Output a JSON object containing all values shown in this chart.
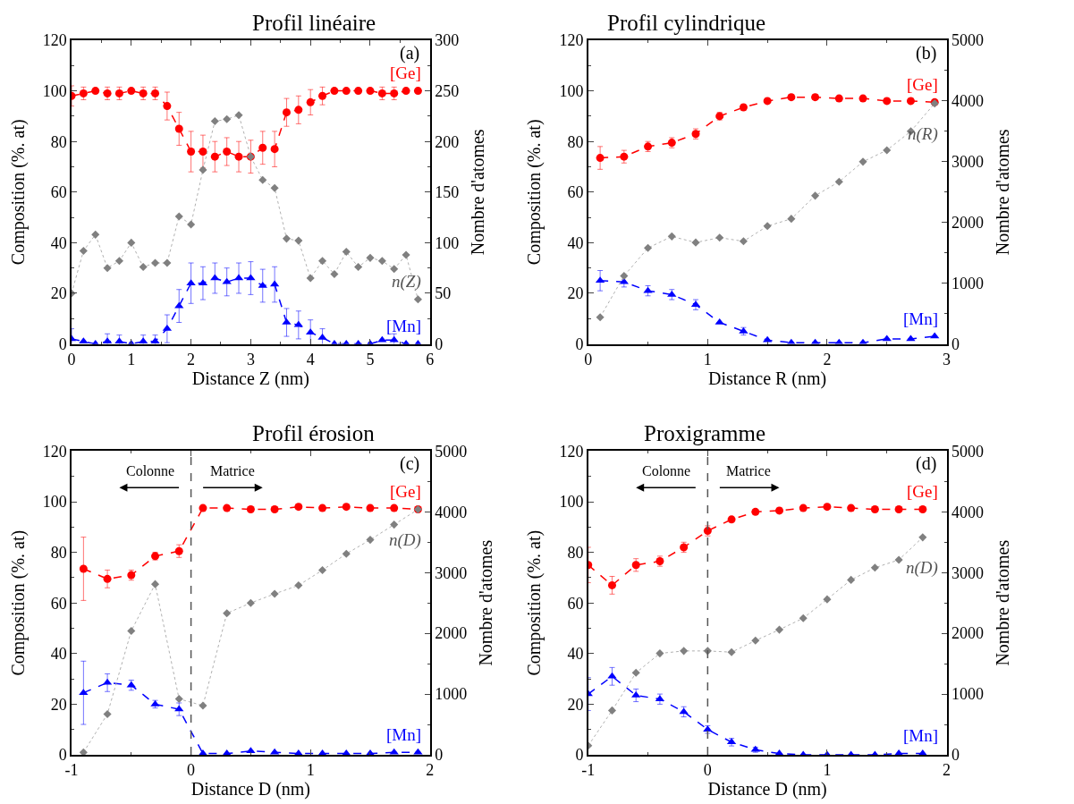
{
  "chart_data": [
    {
      "type": "line",
      "title": "Profil linéaire",
      "xlabel": "Distance Z (nm)",
      "ylabel": "Composition (%. at)",
      "y2label": "Nombre d'atomes",
      "xlim": [
        0,
        6
      ],
      "xticks": [
        0,
        1,
        2,
        3,
        4,
        5,
        6
      ],
      "ylim": [
        0,
        120
      ],
      "yticks": [
        0,
        20,
        40,
        60,
        80,
        100,
        120
      ],
      "y2lim": [
        0,
        300
      ],
      "y2ticks": [
        0,
        50,
        100,
        150,
        200,
        250,
        300
      ],
      "x": [
        0,
        0.2,
        0.4,
        0.6,
        0.8,
        1,
        1.2,
        1.4,
        1.6,
        1.8,
        2,
        2.2,
        2.4,
        2.6,
        2.8,
        3,
        3.2,
        3.4,
        3.6,
        3.8,
        4,
        4.2,
        4.4,
        4.6,
        4.8,
        5,
        5.2,
        5.4,
        5.6,
        5.8
      ],
      "series": [
        {
          "name": "[Ge]",
          "color": "#ff0000",
          "marker": "circle",
          "line_style": "dashed",
          "values": [
            98,
            99,
            100,
            99,
            99,
            100,
            99,
            99,
            94,
            85,
            76,
            76,
            74,
            76,
            74,
            74,
            77.5,
            77,
            91.5,
            92.5,
            95.5,
            98,
            100,
            100,
            100,
            100,
            99,
            99,
            100,
            100
          ],
          "errors": [
            4,
            2.5,
            null,
            2.5,
            2.5,
            null,
            2.5,
            2.5,
            5.5,
            6.5,
            8,
            6.5,
            6,
            5.5,
            6,
            6.5,
            6.5,
            7,
            5.5,
            5.5,
            5,
            3.5,
            null,
            null,
            null,
            null,
            2.5,
            2.5,
            null,
            null
          ]
        },
        {
          "name": "[Mn]",
          "color": "#0000ff",
          "marker": "triangle",
          "line_style": "dashed",
          "values": [
            2,
            1,
            0,
            1,
            1,
            0,
            1,
            1,
            6,
            15,
            24,
            24,
            26,
            24.5,
            26,
            26,
            23,
            23.5,
            8.5,
            7.5,
            4.5,
            2.5,
            0,
            0,
            0,
            0,
            1.5,
            1.5,
            0,
            0
          ],
          "errors": [
            4,
            null,
            null,
            3,
            2.5,
            null,
            2.5,
            2.5,
            5.5,
            6.5,
            8,
            6.5,
            6,
            5.5,
            6,
            6.5,
            6.5,
            7,
            5.5,
            5.5,
            5,
            3.5,
            null,
            null,
            null,
            null,
            null,
            2.5,
            null,
            null
          ]
        },
        {
          "name": "n(Z)",
          "color": "#808080",
          "marker": "diamond",
          "line_style": "dotted",
          "axis": "y2",
          "values": [
            50,
            92,
            108,
            75,
            82,
            100,
            76,
            80,
            80,
            126,
            118,
            172,
            220,
            222,
            226,
            185,
            162,
            154,
            104,
            102,
            65,
            82,
            69,
            91,
            76,
            85,
            82,
            74,
            88,
            44
          ]
        }
      ],
      "annotations": [
        "(a)"
      ]
    },
    {
      "type": "line",
      "title": "Profil cylindrique",
      "xlabel": "Distance R (nm)",
      "ylabel": "Composition (%. at)",
      "y2label": "Nombre d'atomes",
      "xlim": [
        0,
        3
      ],
      "xticks": [
        0,
        1,
        2,
        3
      ],
      "ylim": [
        0,
        120
      ],
      "yticks": [
        0,
        20,
        40,
        60,
        80,
        100,
        120
      ],
      "y2lim": [
        0,
        5000
      ],
      "y2ticks": [
        0,
        1000,
        2000,
        3000,
        4000,
        5000
      ],
      "x": [
        0.1,
        0.3,
        0.5,
        0.7,
        0.9,
        1.1,
        1.3,
        1.5,
        1.7,
        1.9,
        2.1,
        2.3,
        2.5,
        2.7,
        2.9
      ],
      "series": [
        {
          "name": "[Ge]",
          "color": "#ff0000",
          "marker": "circle",
          "line_style": "dashed",
          "values": [
            73.5,
            74,
            78,
            79.5,
            83,
            90,
            93.5,
            96,
            97.5,
            97.5,
            97,
            97,
            96,
            96,
            95.5
          ],
          "errors": [
            4.5,
            2.5,
            2,
            2,
            2,
            1.5,
            1,
            1,
            1,
            1,
            1,
            1,
            1,
            1,
            1
          ]
        },
        {
          "name": "[Mn]",
          "color": "#0000ff",
          "marker": "triangle",
          "line_style": "dashed",
          "values": [
            25,
            24.5,
            21,
            19.5,
            15.5,
            8.5,
            5,
            1.5,
            0.5,
            0.5,
            0.5,
            0.5,
            2,
            2,
            3
          ],
          "errors": [
            4,
            2,
            2,
            2,
            2,
            null,
            1.5,
            null,
            null,
            null,
            null,
            null,
            null,
            null,
            null
          ]
        },
        {
          "name": "n(R)",
          "color": "#808080",
          "marker": "diamond",
          "line_style": "dotted",
          "axis": "y2",
          "values": [
            440,
            1120,
            1580,
            1770,
            1670,
            1750,
            1690,
            1940,
            2060,
            2440,
            2670,
            3000,
            3190,
            3500,
            3960
          ]
        }
      ],
      "annotations": [
        "(b)"
      ]
    },
    {
      "type": "line",
      "title": "Profil érosion",
      "xlabel": "Distance D (nm)",
      "ylabel": "Composition (%. at)",
      "y2label": "Nombre d'atomes",
      "xlim": [
        -1,
        2
      ],
      "xticks": [
        -1,
        0,
        1,
        2
      ],
      "ylim": [
        0,
        120
      ],
      "yticks": [
        0,
        20,
        40,
        60,
        80,
        100,
        120
      ],
      "y2lim": [
        0,
        5000
      ],
      "y2ticks": [
        0,
        1000,
        2000,
        3000,
        4000,
        5000
      ],
      "x": [
        -0.9,
        -0.7,
        -0.5,
        -0.3,
        -0.1,
        0.1,
        0.3,
        0.5,
        0.7,
        0.9,
        1.1,
        1.3,
        1.5,
        1.7,
        1.9
      ],
      "series": [
        {
          "name": "[Ge]",
          "color": "#ff0000",
          "marker": "circle",
          "line_style": "dashed",
          "values": [
            73.5,
            69.5,
            71,
            78.5,
            80.5,
            97.5,
            97.5,
            97,
            97,
            98,
            97.5,
            98,
            97.5,
            97.5,
            97
          ],
          "errors": [
            12.5,
            3.5,
            2,
            1.5,
            2.5,
            1,
            1,
            1,
            1,
            1,
            1,
            1,
            1,
            1,
            1
          ]
        },
        {
          "name": "[Mn]",
          "color": "#0000ff",
          "marker": "triangle",
          "line_style": "dashed",
          "values": [
            24.5,
            28.5,
            27.5,
            20,
            18,
            0.5,
            0.5,
            1.5,
            1,
            0.5,
            0.5,
            0.5,
            0.5,
            1,
            1
          ],
          "errors": [
            12.5,
            3.5,
            2,
            1.5,
            2.5,
            null,
            null,
            null,
            null,
            null,
            null,
            null,
            null,
            null,
            null
          ]
        },
        {
          "name": "n(D)",
          "color": "#808080",
          "marker": "diamond",
          "line_style": "dotted",
          "axis": "y2",
          "values": [
            40,
            670,
            2040,
            2810,
            920,
            810,
            2330,
            2500,
            2650,
            2790,
            3040,
            3310,
            3540,
            3790,
            4040
          ]
        }
      ],
      "ref_lines": [
        {
          "axis": "x",
          "value": 0,
          "color": "#555555",
          "line_style": "dashed"
        }
      ],
      "annotations": [
        "(c)",
        "Colonne",
        "Matrice"
      ]
    },
    {
      "type": "line",
      "title": "Proxigramme",
      "xlabel": "Distance D (nm)",
      "ylabel": "Composition (%. at)",
      "y2label": "Nombre d'atomes",
      "xlim": [
        -1,
        2
      ],
      "xticks": [
        -1,
        0,
        1,
        2
      ],
      "ylim": [
        0,
        120
      ],
      "yticks": [
        0,
        20,
        40,
        60,
        80,
        100,
        120
      ],
      "y2lim": [
        0,
        5000
      ],
      "y2ticks": [
        0,
        1000,
        2000,
        3000,
        4000,
        5000
      ],
      "x": [
        -1,
        -0.8,
        -0.6,
        -0.4,
        -0.2,
        0,
        0.2,
        0.4,
        0.6,
        0.8,
        1,
        1.2,
        1.4,
        1.6,
        1.8
      ],
      "series": [
        {
          "name": "[Ge]",
          "color": "#ff0000",
          "marker": "circle",
          "line_style": "dashed",
          "values": [
            75,
            67,
            75,
            76.5,
            82,
            88.5,
            93,
            96,
            96.5,
            97.5,
            98,
            97.5,
            97,
            97,
            97
          ],
          "errors": [
            7,
            3.5,
            2.5,
            2,
            2,
            2,
            1,
            1,
            1,
            1,
            1,
            1,
            1,
            1,
            1
          ]
        },
        {
          "name": "[Mn]",
          "color": "#0000ff",
          "marker": "triangle",
          "line_style": "dashed",
          "values": [
            24,
            31,
            23.5,
            22,
            17,
            10,
            5,
            2,
            0.5,
            0,
            0,
            0,
            0,
            0.5,
            0.5
          ],
          "errors": [
            6.5,
            3.5,
            2.5,
            2,
            2,
            1.5,
            1.5,
            1,
            null,
            null,
            null,
            null,
            null,
            null,
            null
          ]
        },
        {
          "name": "n(D)",
          "color": "#808080",
          "marker": "diamond",
          "line_style": "dotted",
          "axis": "y2",
          "values": [
            150,
            730,
            1350,
            1670,
            1710,
            1710,
            1690,
            1880,
            2060,
            2250,
            2560,
            2880,
            3080,
            3210,
            3580
          ]
        }
      ],
      "ref_lines": [
        {
          "axis": "x",
          "value": 0,
          "color": "#555555",
          "line_style": "dashed"
        }
      ],
      "annotations": [
        "(d)",
        "Colonne",
        "Matrice"
      ]
    }
  ]
}
